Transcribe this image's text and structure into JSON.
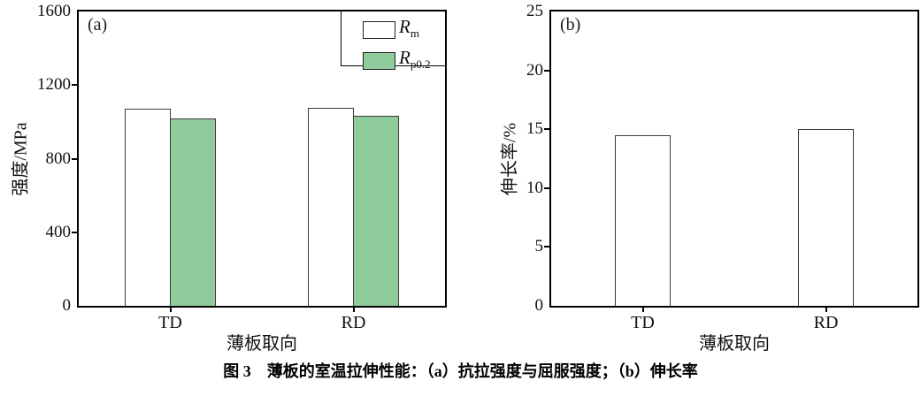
{
  "figure": {
    "caption": "图 3　薄板的室温拉伸性能：（a）抗拉强度与屈服强度；（b）伸长率"
  },
  "colors": {
    "axis": "#000000",
    "bar_border": "#3a3a3a",
    "rm_fill": "#ffffff",
    "rp02_fill": "#8FCB9B"
  },
  "legend": {
    "items": [
      {
        "main": "R",
        "sub": "m"
      },
      {
        "main": "R",
        "sub": "p0.2"
      }
    ]
  },
  "chart_data": [
    {
      "type": "bar",
      "panel_label": "(a)",
      "categories": [
        "TD",
        "RD"
      ],
      "series": [
        {
          "name": "Rm",
          "values": [
            1070,
            1075
          ],
          "fill": "#ffffff"
        },
        {
          "name": "Rp0.2",
          "values": [
            1020,
            1035
          ],
          "fill": "#8FCB9B"
        }
      ],
      "xlabel": "薄板取向",
      "ylabel": "强度/MPa",
      "ylim": [
        0,
        1600
      ],
      "yticks": [
        0,
        400,
        800,
        1200,
        1600
      ],
      "grid": false,
      "legend_position": "top-right"
    },
    {
      "type": "bar",
      "panel_label": "(b)",
      "categories": [
        "TD",
        "RD"
      ],
      "series": [
        {
          "name": "elongation",
          "values": [
            14.5,
            15.0
          ],
          "fill": "#ffffff"
        }
      ],
      "xlabel": "薄板取向",
      "ylabel": "伸长率/%",
      "ylim": [
        0,
        25
      ],
      "yticks": [
        0,
        5,
        10,
        15,
        20,
        25
      ],
      "grid": false,
      "legend_position": "none"
    }
  ]
}
